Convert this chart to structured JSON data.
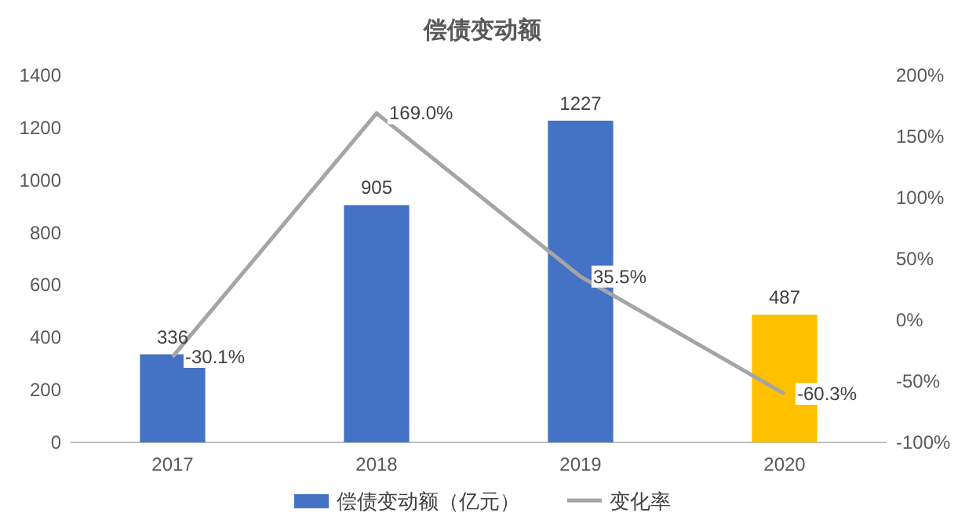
{
  "chart_data": {
    "type": "bar",
    "title": "偿债变动额",
    "categories": [
      "2017",
      "2018",
      "2019",
      "2020"
    ],
    "series": [
      {
        "name": "偿债变动额（亿元）",
        "color": "#4472c4",
        "colors": [
          "#4472c4",
          "#4472c4",
          "#4472c4",
          "#ffc000"
        ],
        "values": [
          336,
          905,
          1227,
          487
        ],
        "value_labels": [
          "336",
          "905",
          "1227",
          "487"
        ]
      },
      {
        "name": "变化率",
        "type": "line",
        "axis": "y2",
        "color": "#a5a5a5",
        "values": [
          -30.1,
          169.0,
          35.5,
          -60.3
        ],
        "value_labels": [
          "-30.1%",
          "169.0%",
          "35.5%",
          "-60.3%"
        ]
      }
    ],
    "ylim": [
      0,
      1400
    ],
    "yticks": [
      0,
      200,
      400,
      600,
      800,
      1000,
      1200,
      1400
    ],
    "y2lim": [
      -100,
      200
    ],
    "y2ticks": [
      {
        "value": -100,
        "label": "-100%"
      },
      {
        "value": -50,
        "label": "-50%"
      },
      {
        "value": 0,
        "label": "0%"
      },
      {
        "value": 50,
        "label": "50%"
      },
      {
        "value": 100,
        "label": "100%"
      },
      {
        "value": 150,
        "label": "150%"
      },
      {
        "value": 200,
        "label": "200%"
      }
    ],
    "legend": "bottom"
  }
}
